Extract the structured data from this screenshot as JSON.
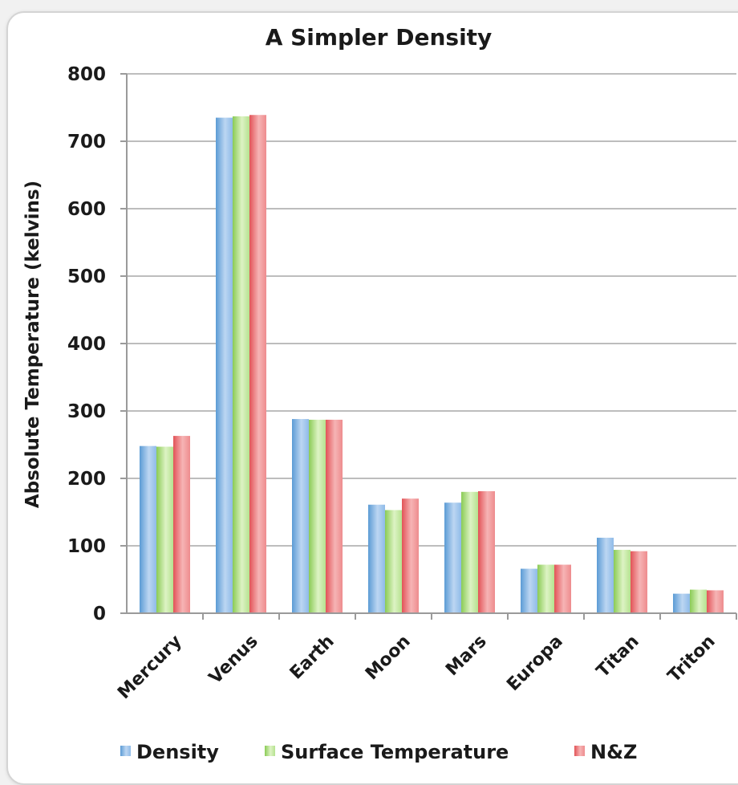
{
  "chart_data": {
    "type": "bar",
    "title": "A Simpler Density",
    "xlabel": "",
    "ylabel": "Absolute Temperature (kelvins)",
    "ylim": [
      0,
      800
    ],
    "yticks": [
      "0",
      "100",
      "200",
      "300",
      "400",
      "500",
      "600",
      "700",
      "800"
    ],
    "grid": true,
    "legend_position": "bottom",
    "categories": [
      "Mercury",
      "Venus",
      "Earth",
      "Moon",
      "Mars",
      "Europa",
      "Titan",
      "Triton"
    ],
    "series": [
      {
        "name": "Density",
        "color": "#5b9bd5",
        "values": [
          248,
          735,
          288,
          161,
          164,
          66,
          112,
          29
        ]
      },
      {
        "name": "Surface Temperature",
        "color": "#9bd66a",
        "values": [
          247,
          737,
          287,
          153,
          180,
          72,
          94,
          35
        ]
      },
      {
        "name": "N&Z",
        "color": "#e8676b",
        "values": [
          263,
          739,
          287,
          170,
          181,
          72,
          92,
          34
        ]
      }
    ]
  }
}
